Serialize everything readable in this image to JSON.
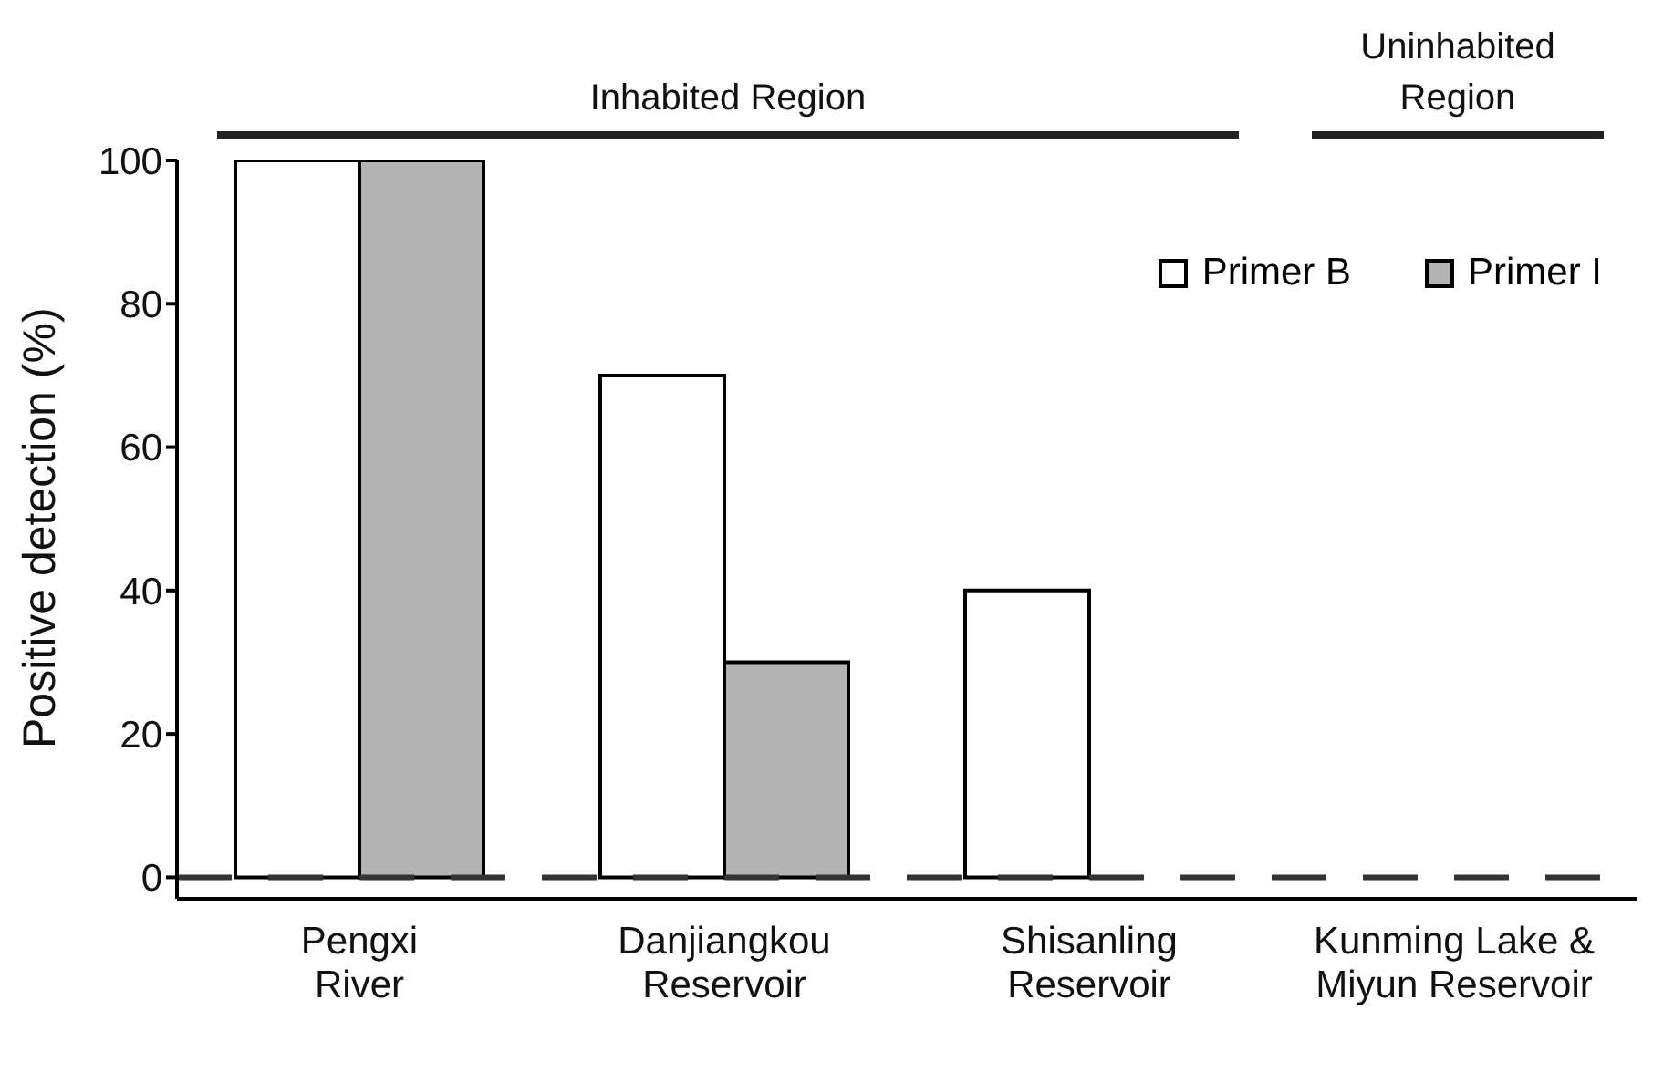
{
  "chart_data": {
    "type": "bar",
    "ylabel": "Positive detection (%)",
    "categories": [
      "Pengxi\nRiver",
      "Danjiangkou\nReservoir",
      "Shisanling\nReservoir",
      "Kunming Lake &\nMiyun Reservoir"
    ],
    "series": [
      {
        "name": "Primer B",
        "color": "#ffffff",
        "values": [
          100,
          70,
          40,
          0
        ]
      },
      {
        "name": "Primer I",
        "color": "#b3b3b3",
        "values": [
          100,
          30,
          0,
          0
        ]
      }
    ],
    "ylim": [
      -3,
      100
    ],
    "yticks": [
      0,
      20,
      40,
      60,
      80,
      100
    ],
    "ref_lines": [
      {
        "axis": "y",
        "value": 0,
        "color": "#333333",
        "line_style": "dashed"
      }
    ],
    "annotations": [
      "Inhabited Region",
      "Uninhabited Region"
    ],
    "grid": false,
    "legend": "top right"
  }
}
